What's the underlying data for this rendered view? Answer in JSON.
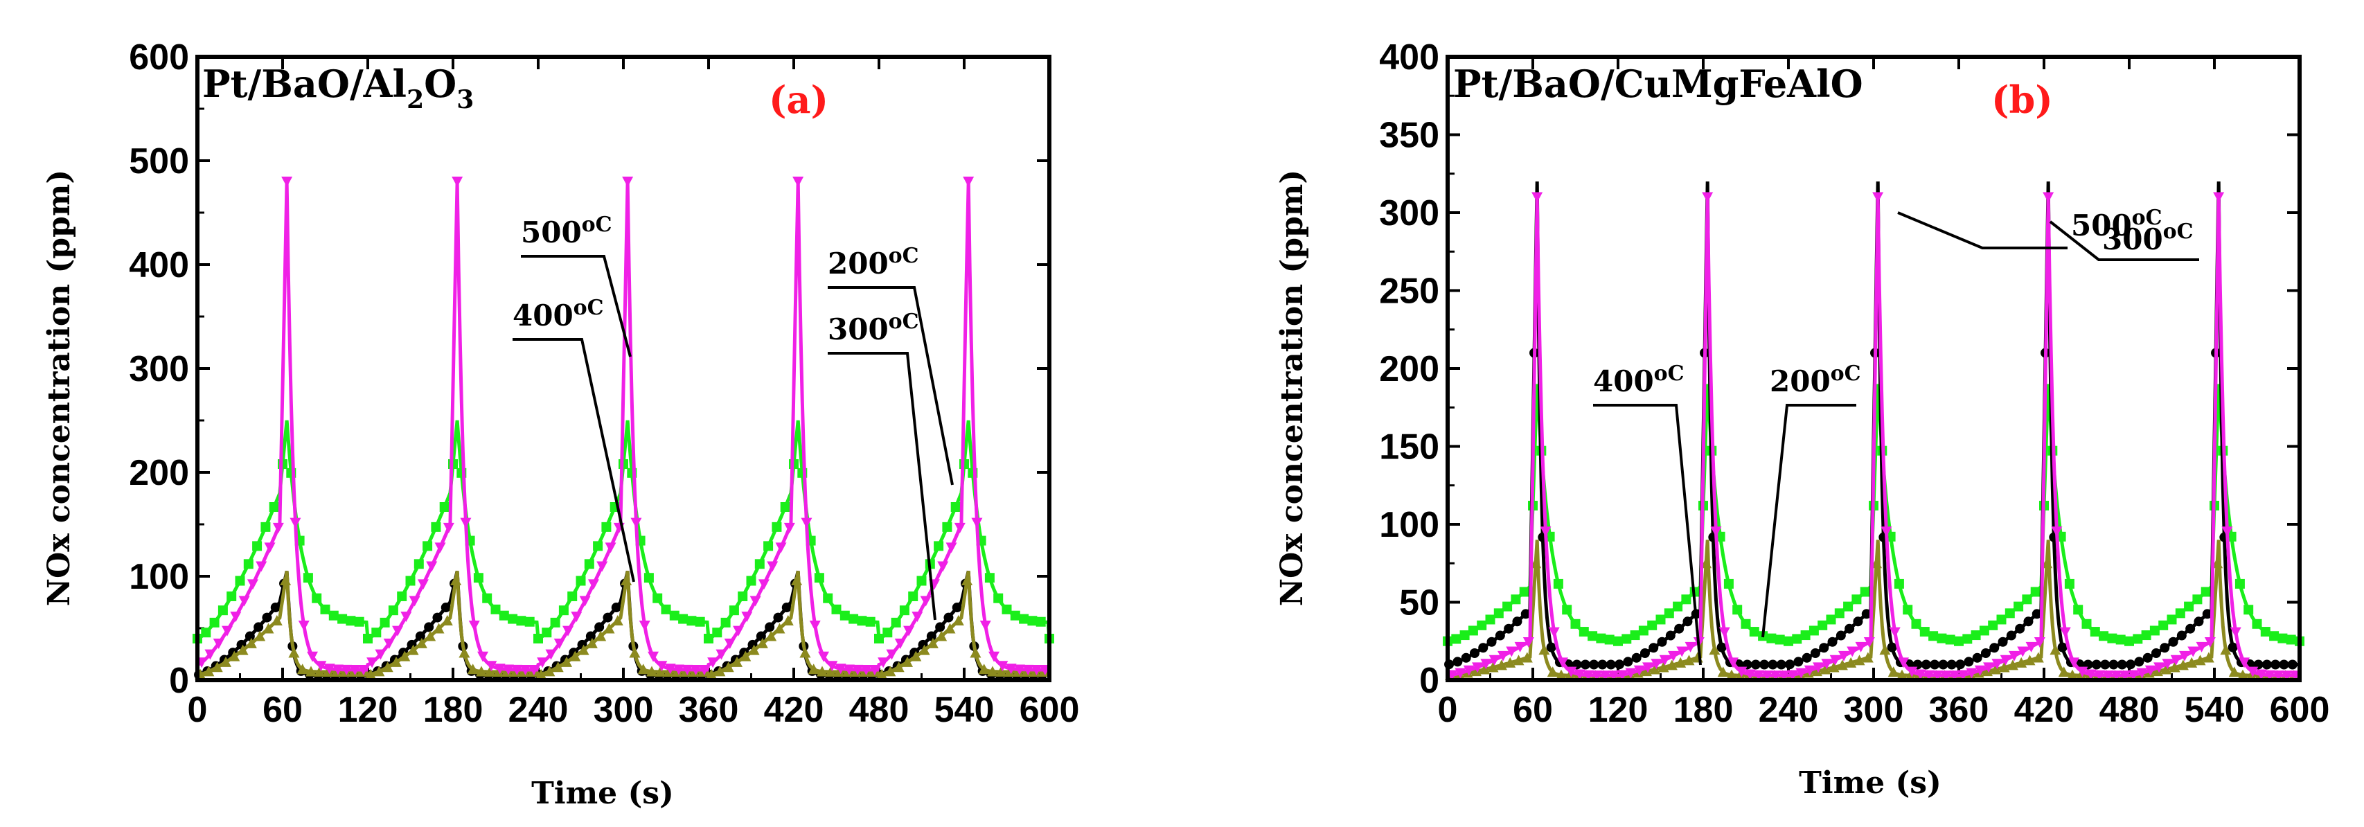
{
  "chart_data": [
    {
      "panel": "(a)",
      "type": "line",
      "title": "Pt/BaO/Al2O3",
      "title_main": "Pt/BaO/Al",
      "title_sub1": "2",
      "title_mid": "O",
      "title_sub2": "3",
      "tag": "(a)",
      "xlabel": "Time (s)",
      "ylabel": "NOx concentration (ppm)",
      "xlim": [
        0,
        600
      ],
      "ylim": [
        0,
        600
      ],
      "xticks": [
        0,
        60,
        120,
        180,
        240,
        300,
        360,
        420,
        480,
        540,
        600
      ],
      "yticks": [
        0,
        100,
        200,
        300,
        400,
        500,
        600
      ],
      "x_minor_step": 30,
      "y_minor_step": 50,
      "cycle_period": 120,
      "n_cycles": 5,
      "series": [
        {
          "name": "500°C",
          "color": "#1aee1a",
          "marker": "square",
          "peak": 250,
          "base": 55,
          "ramp_start": 40,
          "ramp_end": 180,
          "rise_to": 250,
          "decay": "slow"
        },
        {
          "name": "400°C",
          "color": "#000000",
          "marker": "circle",
          "peak": 110,
          "base": 5,
          "ramp_start": 5,
          "ramp_end": 75,
          "rise_to": 105,
          "decay": "fast"
        },
        {
          "name": "300°C",
          "color": "#8c8a1f",
          "marker": "triangle-up",
          "peak": 105,
          "base": 8,
          "ramp_start": 5,
          "ramp_end": 60,
          "rise_to": 105,
          "decay": "fast"
        },
        {
          "name": "200°C",
          "color": "#f020e6",
          "marker": "triangle-down",
          "peak": 480,
          "base": 10,
          "ramp_start": 15,
          "ramp_end": 150,
          "rise_to": 480,
          "decay": "medium"
        }
      ],
      "annotations": [
        {
          "text": "500",
          "unit": "oC"
        },
        {
          "text": "400",
          "unit": "oC"
        },
        {
          "text": "200",
          "unit": "oC"
        },
        {
          "text": "300",
          "unit": "oC"
        }
      ]
    },
    {
      "panel": "(b)",
      "type": "line",
      "title": "Pt/BaO/CuMgFeAlO",
      "tag": "(b)",
      "xlabel": "Time (s)",
      "ylabel": "NOx concentration (ppm)",
      "xlim": [
        0,
        600
      ],
      "ylim": [
        0,
        400
      ],
      "xticks": [
        0,
        60,
        120,
        180,
        240,
        300,
        360,
        420,
        480,
        540,
        600
      ],
      "yticks": [
        0,
        50,
        100,
        150,
        200,
        250,
        300,
        350,
        400
      ],
      "x_minor_step": 30,
      "y_minor_step": 25,
      "cycle_period": 120,
      "n_cycles": 5,
      "series": [
        {
          "name": "500°C",
          "color": "#1aee1a",
          "marker": "square",
          "peak": 190,
          "base": 25,
          "ramp_start": 25,
          "ramp_end": 60,
          "rise_to": 190,
          "decay": "slow"
        },
        {
          "name": "400°C",
          "color": "#000000",
          "marker": "circle",
          "peak": 320,
          "base": 10,
          "ramp_start": 10,
          "ramp_end": 45,
          "rise_to": 320,
          "decay": "fast"
        },
        {
          "name": "300°C",
          "color": "#8c8a1f",
          "marker": "triangle-up",
          "peak": 90,
          "base": 3,
          "ramp_start": 3,
          "ramp_end": 15,
          "rise_to": 90,
          "decay": "fast"
        },
        {
          "name": "200°C",
          "color": "#f020e6",
          "marker": "triangle-down",
          "peak": 310,
          "base": 3,
          "ramp_start": 3,
          "ramp_end": 25,
          "rise_to": 310,
          "decay": "medium"
        }
      ],
      "annotations": [
        {
          "text": "500",
          "unit": "oC"
        },
        {
          "text": "400",
          "unit": "oC"
        },
        {
          "text": "200",
          "unit": "oC"
        },
        {
          "text": "300",
          "unit": "oC"
        }
      ]
    }
  ]
}
